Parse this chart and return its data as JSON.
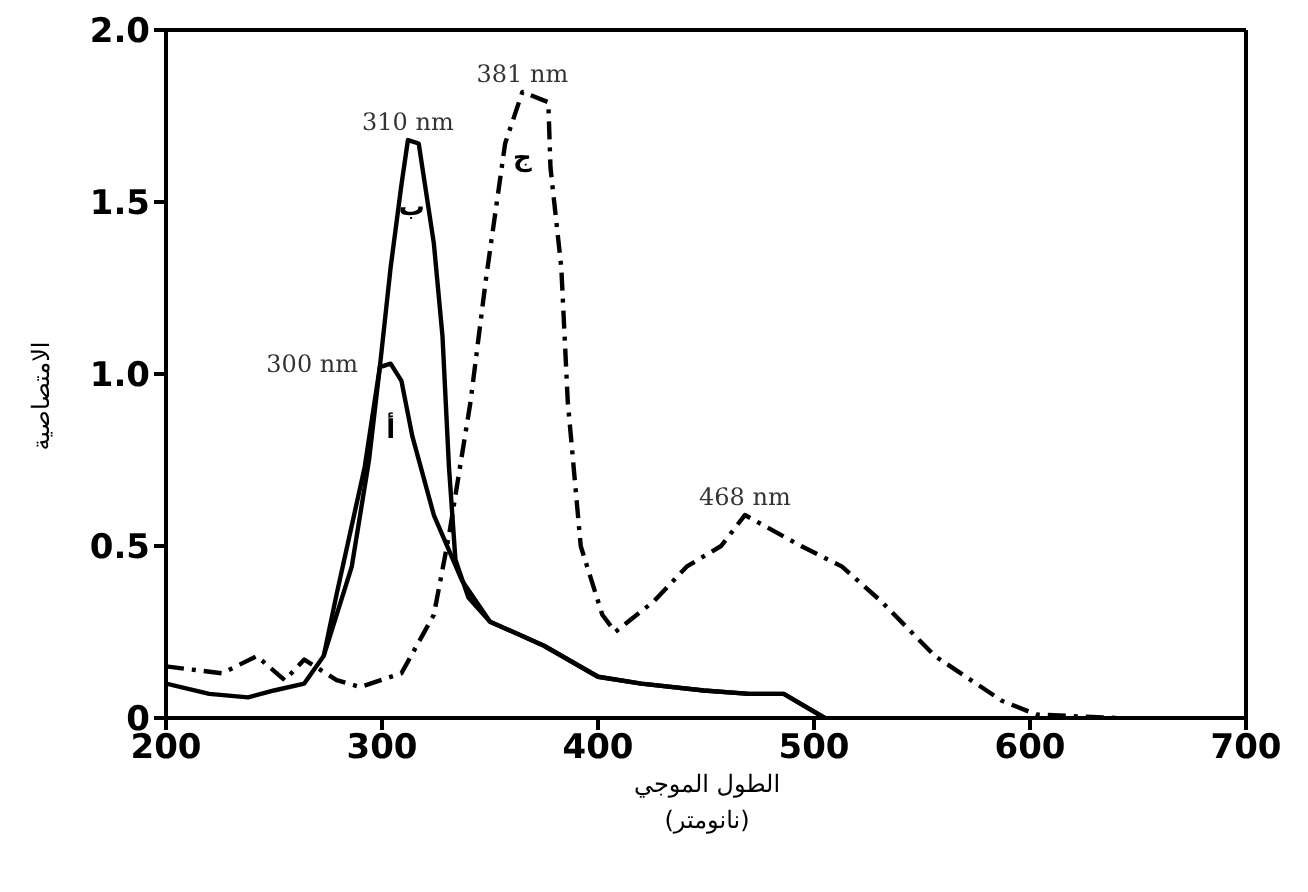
{
  "chart_data": {
    "type": "line",
    "xlabel": "الطول الموجي\n(نانومتر)",
    "ylabel": "الامتصاصية",
    "xlim": [
      200,
      700
    ],
    "xticks": [
      200,
      300,
      400,
      500,
      600,
      700
    ],
    "ylim": [
      0,
      2
    ],
    "yticks": [
      0,
      {
        "value": 0.5,
        "label": "0.5"
      },
      {
        "value": 1,
        "label": "1.0"
      },
      {
        "value": 1.5,
        "label": "1.5"
      },
      {
        "value": 2,
        "label": "2.0"
      }
    ],
    "series": [
      {
        "color": "#000000",
        "line_style": "solid",
        "x": [
          200,
          220,
          238,
          250,
          264,
          273,
          286,
          294,
          299,
          304,
          309,
          314,
          324,
          337,
          350,
          375,
          400,
          420,
          449,
          470,
          486,
          505
        ],
        "values": [
          0.1,
          0.07,
          0.06,
          0.08,
          0.1,
          0.18,
          0.44,
          0.75,
          1.02,
          1.03,
          0.98,
          0.82,
          0.59,
          0.4,
          0.28,
          0.21,
          0.12,
          0.1,
          0.08,
          0.07,
          0.07,
          0
        ]
      },
      {
        "color": "#000000",
        "line_style": "solid",
        "x": [
          273,
          279,
          292,
          299,
          304,
          309,
          312,
          317,
          324,
          328,
          331,
          334,
          340,
          350,
          375,
          400,
          420,
          449,
          470,
          486,
          505
        ],
        "values": [
          0.18,
          0.36,
          0.73,
          1.02,
          1.31,
          1.55,
          1.68,
          1.67,
          1.38,
          1.11,
          0.73,
          0.46,
          0.35,
          0.28,
          0.21,
          0.12,
          0.1,
          0.08,
          0.07,
          0.07,
          0
        ]
      },
      {
        "color": "#000000",
        "line_style": "dashed",
        "x": [
          200,
          226,
          242,
          255,
          264,
          279,
          290,
          309,
          324,
          331,
          341,
          348,
          357,
          365,
          377,
          378,
          383,
          386,
          392,
          402,
          408,
          426,
          441,
          457,
          468,
          494,
          513,
          531,
          556,
          587,
          603,
          640
        ],
        "values": [
          0.15,
          0.13,
          0.18,
          0.11,
          0.17,
          0.11,
          0.09,
          0.13,
          0.3,
          0.53,
          0.92,
          1.27,
          1.67,
          1.82,
          1.79,
          1.6,
          1.31,
          0.92,
          0.5,
          0.3,
          0.25,
          0.34,
          0.44,
          0.5,
          0.59,
          0.5,
          0.44,
          0.34,
          0.18,
          0.05,
          0.01,
          0
        ]
      }
    ],
    "annotations": [
      {
        "text": "300 nm",
        "x": 300,
        "y": 1.03
      },
      {
        "text": "310 nm",
        "x": 312,
        "y": 1.68
      },
      {
        "text": "381 nm",
        "x": 365,
        "y": 1.82
      },
      {
        "text": "468 nm",
        "x": 468,
        "y": 0.59
      },
      "أ",
      "ب",
      "ج"
    ]
  }
}
